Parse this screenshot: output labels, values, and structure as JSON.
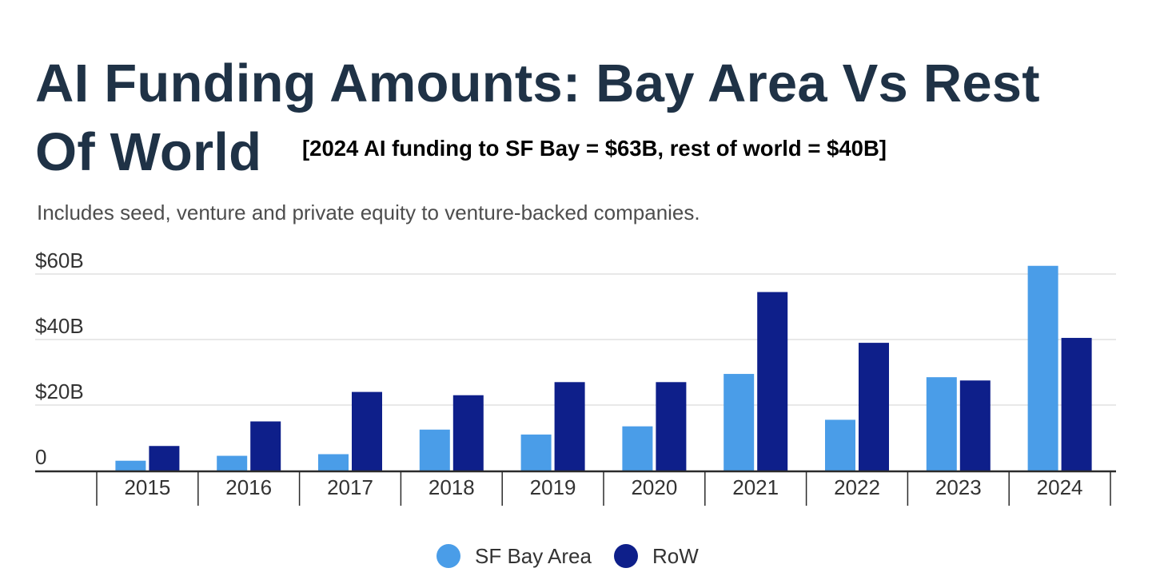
{
  "header": {
    "title": "AI Funding Amounts: Bay Area Vs Rest Of World",
    "annotation": "[2024 AI funding to SF Bay = $63B, rest of world = $40B]",
    "subtitle": "Includes seed, venture and private equity to venture-backed companies."
  },
  "chart_data": {
    "type": "bar",
    "title": "AI Funding Amounts: Bay Area Vs Rest Of World",
    "subtitle": "Includes seed, venture and private equity to venture-backed companies.",
    "annotation": "[2024 AI funding to SF Bay = $63B, rest of world = $40B]",
    "categories": [
      "2015",
      "2016",
      "2017",
      "2018",
      "2019",
      "2020",
      "2021",
      "2022",
      "2023",
      "2024"
    ],
    "series": [
      {
        "name": "SF Bay Area",
        "color": "#4a9de8",
        "values": [
          3,
          4.5,
          5,
          12.5,
          11,
          13.5,
          29.5,
          15.5,
          28.5,
          62.5
        ]
      },
      {
        "name": "RoW",
        "color": "#0e1f8a",
        "values": [
          7.5,
          15,
          24,
          23,
          27,
          27,
          54.5,
          39,
          27.5,
          40.5
        ]
      }
    ],
    "y_ticks": [
      {
        "value": 0,
        "label": "0"
      },
      {
        "value": 20,
        "label": "$20B"
      },
      {
        "value": 40,
        "label": "$40B"
      },
      {
        "value": 60,
        "label": "$60B"
      }
    ],
    "ylim": [
      0,
      60
    ],
    "grid": true,
    "legend": "bottom-center"
  }
}
